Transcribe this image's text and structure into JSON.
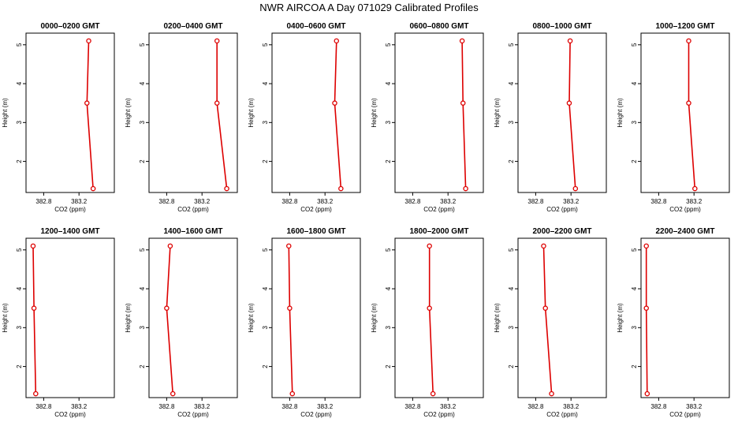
{
  "title": "NWR AIRCOA A  Day 071029  Calibrated Profiles",
  "chart_data": [
    {
      "type": "line",
      "title": "0000–0200 GMT",
      "xlabel": "CO2 (ppm)",
      "ylabel": "Height (m)",
      "x": [
        383.36,
        383.29,
        383.31
      ],
      "y": [
        1.3,
        3.5,
        5.1
      ],
      "xlim": [
        382.6,
        383.6
      ],
      "ylim": [
        1.2,
        5.3
      ],
      "xticks": [
        "382.8",
        "383.2"
      ],
      "yticks": [
        "2",
        "3",
        "4",
        "5"
      ]
    },
    {
      "type": "line",
      "title": "0200–0400 GMT",
      "xlabel": "CO2 (ppm)",
      "ylabel": "Height (m)",
      "x": [
        383.48,
        383.37,
        383.37
      ],
      "y": [
        1.3,
        3.5,
        5.1
      ],
      "xlim": [
        382.6,
        383.6
      ],
      "ylim": [
        1.2,
        5.3
      ],
      "xticks": [
        "382.8",
        "383.2"
      ],
      "yticks": [
        "2",
        "3",
        "4",
        "5"
      ]
    },
    {
      "type": "line",
      "title": "0400–0600 GMT",
      "xlabel": "CO2 (ppm)",
      "ylabel": "Height (m)",
      "x": [
        383.38,
        383.31,
        383.33
      ],
      "y": [
        1.3,
        3.5,
        5.1
      ],
      "xlim": [
        382.6,
        383.6
      ],
      "ylim": [
        1.2,
        5.3
      ],
      "xticks": [
        "382.8",
        "383.2"
      ],
      "yticks": [
        "2",
        "3",
        "4",
        "5"
      ]
    },
    {
      "type": "line",
      "title": "0600–0800 GMT",
      "xlabel": "CO2 (ppm)",
      "ylabel": "Height (m)",
      "x": [
        383.4,
        383.37,
        383.36
      ],
      "y": [
        1.3,
        3.5,
        5.1
      ],
      "xlim": [
        382.6,
        383.6
      ],
      "ylim": [
        1.2,
        5.3
      ],
      "xticks": [
        "382.8",
        "383.2"
      ],
      "yticks": [
        "2",
        "3",
        "4",
        "5"
      ]
    },
    {
      "type": "line",
      "title": "0800–1000 GMT",
      "xlabel": "CO2 (ppm)",
      "ylabel": "Height (m)",
      "x": [
        383.25,
        383.18,
        383.19
      ],
      "y": [
        1.3,
        3.5,
        5.1
      ],
      "xlim": [
        382.6,
        383.6
      ],
      "ylim": [
        1.2,
        5.3
      ],
      "xticks": [
        "382.8",
        "383.2"
      ],
      "yticks": [
        "2",
        "3",
        "4",
        "5"
      ]
    },
    {
      "type": "line",
      "title": "1000–1200 GMT",
      "xlabel": "CO2 (ppm)",
      "ylabel": "Height (m)",
      "x": [
        383.21,
        383.14,
        383.14
      ],
      "y": [
        1.3,
        3.5,
        5.1
      ],
      "xlim": [
        382.6,
        383.6
      ],
      "ylim": [
        1.2,
        5.3
      ],
      "xticks": [
        "382.8",
        "383.2"
      ],
      "yticks": [
        "2",
        "3",
        "4",
        "5"
      ]
    },
    {
      "type": "line",
      "title": "1200–1400 GMT",
      "xlabel": "CO2 (ppm)",
      "ylabel": "Height (m)",
      "x": [
        382.71,
        382.69,
        382.68
      ],
      "y": [
        1.3,
        3.5,
        5.1
      ],
      "xlim": [
        382.6,
        383.6
      ],
      "ylim": [
        1.2,
        5.3
      ],
      "xticks": [
        "382.8",
        "383.2"
      ],
      "yticks": [
        "2",
        "3",
        "4",
        "5"
      ]
    },
    {
      "type": "line",
      "title": "1400–1600 GMT",
      "xlabel": "CO2 (ppm)",
      "ylabel": "Height (m)",
      "x": [
        382.87,
        382.8,
        382.84
      ],
      "y": [
        1.3,
        3.5,
        5.1
      ],
      "xlim": [
        382.6,
        383.6
      ],
      "ylim": [
        1.2,
        5.3
      ],
      "xticks": [
        "382.8",
        "383.2"
      ],
      "yticks": [
        "2",
        "3",
        "4",
        "5"
      ]
    },
    {
      "type": "line",
      "title": "1600–1800 GMT",
      "xlabel": "CO2 (ppm)",
      "ylabel": "Height (m)",
      "x": [
        382.83,
        382.8,
        382.79
      ],
      "y": [
        1.3,
        3.5,
        5.1
      ],
      "xlim": [
        382.6,
        383.6
      ],
      "ylim": [
        1.2,
        5.3
      ],
      "xticks": [
        "382.8",
        "383.2"
      ],
      "yticks": [
        "2",
        "3",
        "4",
        "5"
      ]
    },
    {
      "type": "line",
      "title": "1800–2000 GMT",
      "xlabel": "CO2 (ppm)",
      "ylabel": "Height (m)",
      "x": [
        383.03,
        382.99,
        382.99
      ],
      "y": [
        1.3,
        3.5,
        5.1
      ],
      "xlim": [
        382.6,
        383.6
      ],
      "ylim": [
        1.2,
        5.3
      ],
      "xticks": [
        "382.8",
        "383.2"
      ],
      "yticks": [
        "2",
        "3",
        "4",
        "5"
      ]
    },
    {
      "type": "line",
      "title": "2000–2200 GMT",
      "xlabel": "CO2 (ppm)",
      "ylabel": "Height (m)",
      "x": [
        382.98,
        382.91,
        382.89
      ],
      "y": [
        1.3,
        3.5,
        5.1
      ],
      "xlim": [
        382.6,
        383.6
      ],
      "ylim": [
        1.2,
        5.3
      ],
      "xticks": [
        "382.8",
        "383.2"
      ],
      "yticks": [
        "2",
        "3",
        "4",
        "5"
      ]
    },
    {
      "type": "line",
      "title": "2200–2400 GMT",
      "xlabel": "CO2 (ppm)",
      "ylabel": "Height (m)",
      "x": [
        382.67,
        382.66,
        382.66
      ],
      "y": [
        1.3,
        3.5,
        5.1
      ],
      "xlim": [
        382.6,
        383.6
      ],
      "ylim": [
        1.2,
        5.3
      ],
      "xticks": [
        "382.8",
        "383.2"
      ],
      "yticks": [
        "2",
        "3",
        "4",
        "5"
      ]
    }
  ]
}
